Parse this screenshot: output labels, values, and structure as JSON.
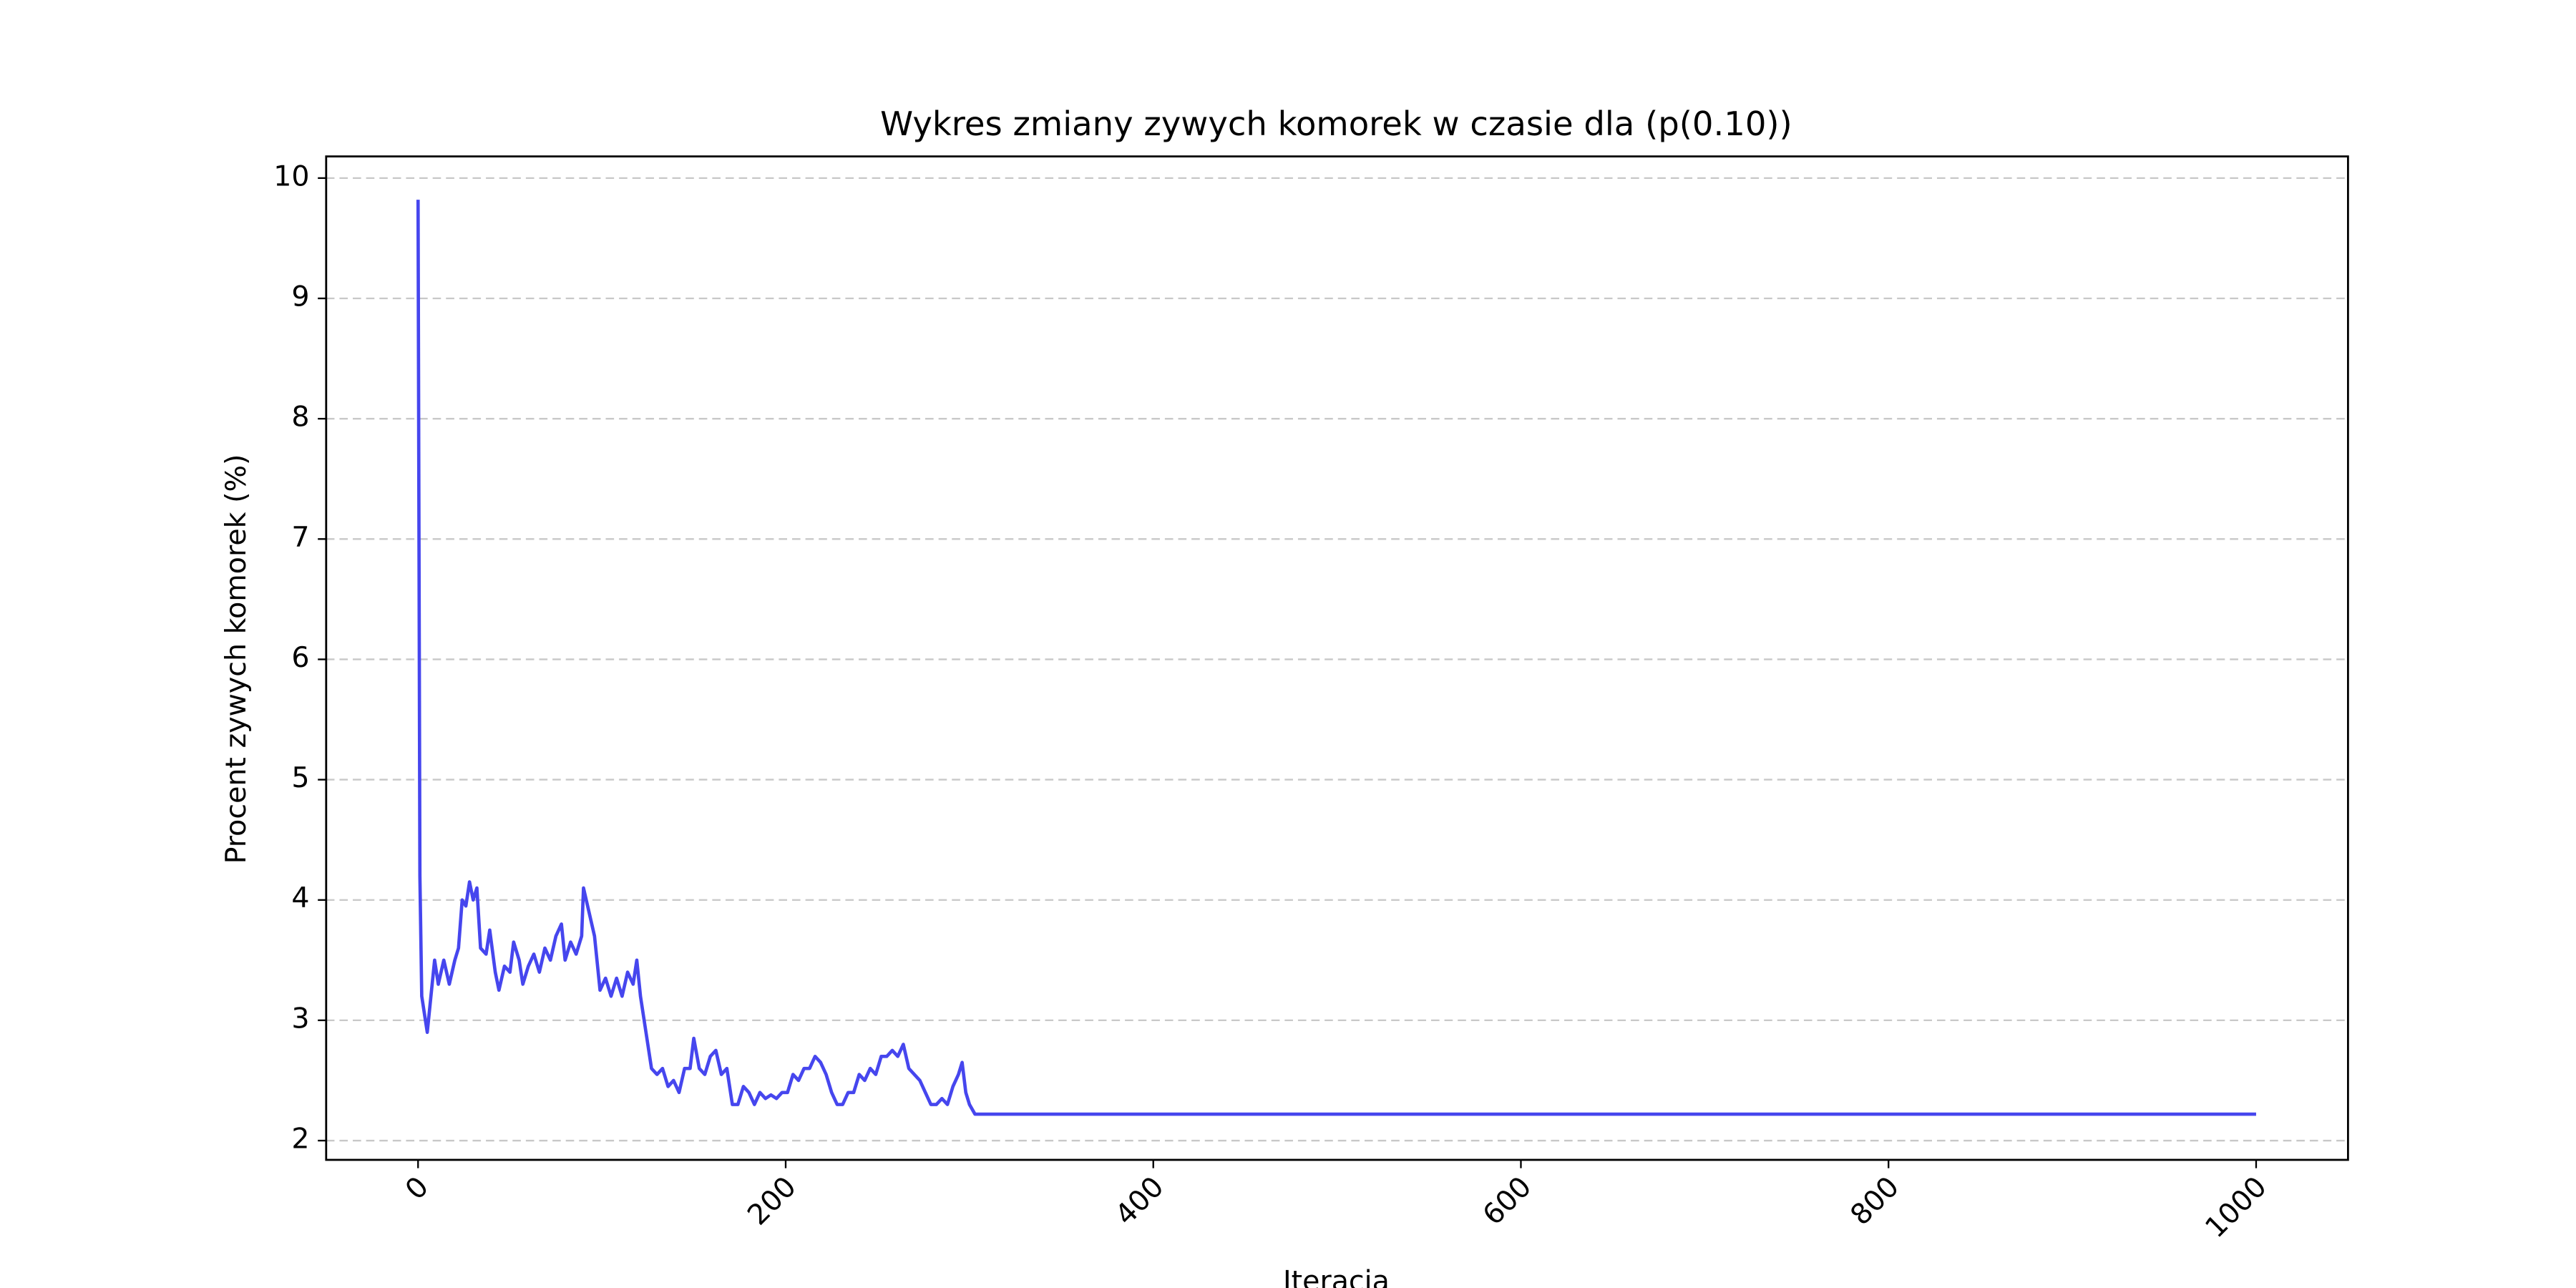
{
  "chart_data": {
    "type": "line",
    "title": "Wykres zmiany zywych komorek w czasie dla (p(0.10))",
    "x_label": "Iteracja",
    "y_label": "Procent zywych komorek (%)",
    "x": [
      0,
      1,
      2,
      4,
      5,
      7,
      9,
      11,
      14,
      17,
      20,
      22,
      24,
      26,
      28,
      30,
      32,
      34,
      37,
      39,
      42,
      44,
      47,
      50,
      52,
      55,
      57,
      60,
      63,
      66,
      69,
      72,
      75,
      78,
      80,
      83,
      86,
      89,
      90,
      93,
      96,
      99,
      102,
      105,
      108,
      111,
      114,
      117,
      119,
      121,
      124,
      127,
      130,
      133,
      136,
      139,
      142,
      145,
      148,
      150,
      153,
      156,
      159,
      162,
      165,
      168,
      171,
      174,
      177,
      180,
      183,
      186,
      189,
      192,
      195,
      198,
      201,
      204,
      207,
      210,
      213,
      216,
      219,
      222,
      225,
      228,
      231,
      234,
      237,
      240,
      243,
      246,
      249,
      252,
      255,
      258,
      261,
      264,
      267,
      270,
      273,
      276,
      279,
      282,
      285,
      288,
      291,
      294,
      296,
      298,
      300,
      303,
      1000
    ],
    "series": [
      {
        "name": "Procent zywych komorek",
        "color": "#4646ee",
        "values": [
          9.82,
          4.2,
          3.2,
          3.0,
          2.9,
          3.2,
          3.5,
          3.3,
          3.5,
          3.3,
          3.5,
          3.6,
          4.0,
          3.95,
          4.15,
          4.0,
          4.1,
          3.6,
          3.55,
          3.75,
          3.4,
          3.25,
          3.45,
          3.4,
          3.65,
          3.5,
          3.3,
          3.45,
          3.55,
          3.4,
          3.6,
          3.5,
          3.7,
          3.8,
          3.5,
          3.65,
          3.55,
          3.7,
          4.1,
          3.9,
          3.7,
          3.25,
          3.35,
          3.2,
          3.35,
          3.2,
          3.4,
          3.3,
          3.5,
          3.2,
          2.9,
          2.6,
          2.55,
          2.6,
          2.45,
          2.5,
          2.4,
          2.6,
          2.6,
          2.85,
          2.6,
          2.55,
          2.7,
          2.75,
          2.55,
          2.6,
          2.3,
          2.3,
          2.45,
          2.4,
          2.3,
          2.4,
          2.35,
          2.38,
          2.35,
          2.4,
          2.4,
          2.55,
          2.5,
          2.6,
          2.6,
          2.7,
          2.65,
          2.55,
          2.4,
          2.3,
          2.3,
          2.4,
          2.4,
          2.55,
          2.5,
          2.6,
          2.55,
          2.7,
          2.7,
          2.75,
          2.7,
          2.8,
          2.6,
          2.55,
          2.5,
          2.4,
          2.3,
          2.3,
          2.35,
          2.3,
          2.45,
          2.55,
          2.65,
          2.4,
          2.3,
          2.22,
          2.22
        ]
      }
    ],
    "xlim": [
      -50,
      1050
    ],
    "xticks": [
      0,
      200,
      400,
      600,
      800,
      1000
    ],
    "ylim": [
      1.84,
      10.18
    ],
    "yticks": [
      2,
      3,
      4,
      5,
      6,
      7,
      8,
      9,
      10
    ],
    "grid": true
  }
}
